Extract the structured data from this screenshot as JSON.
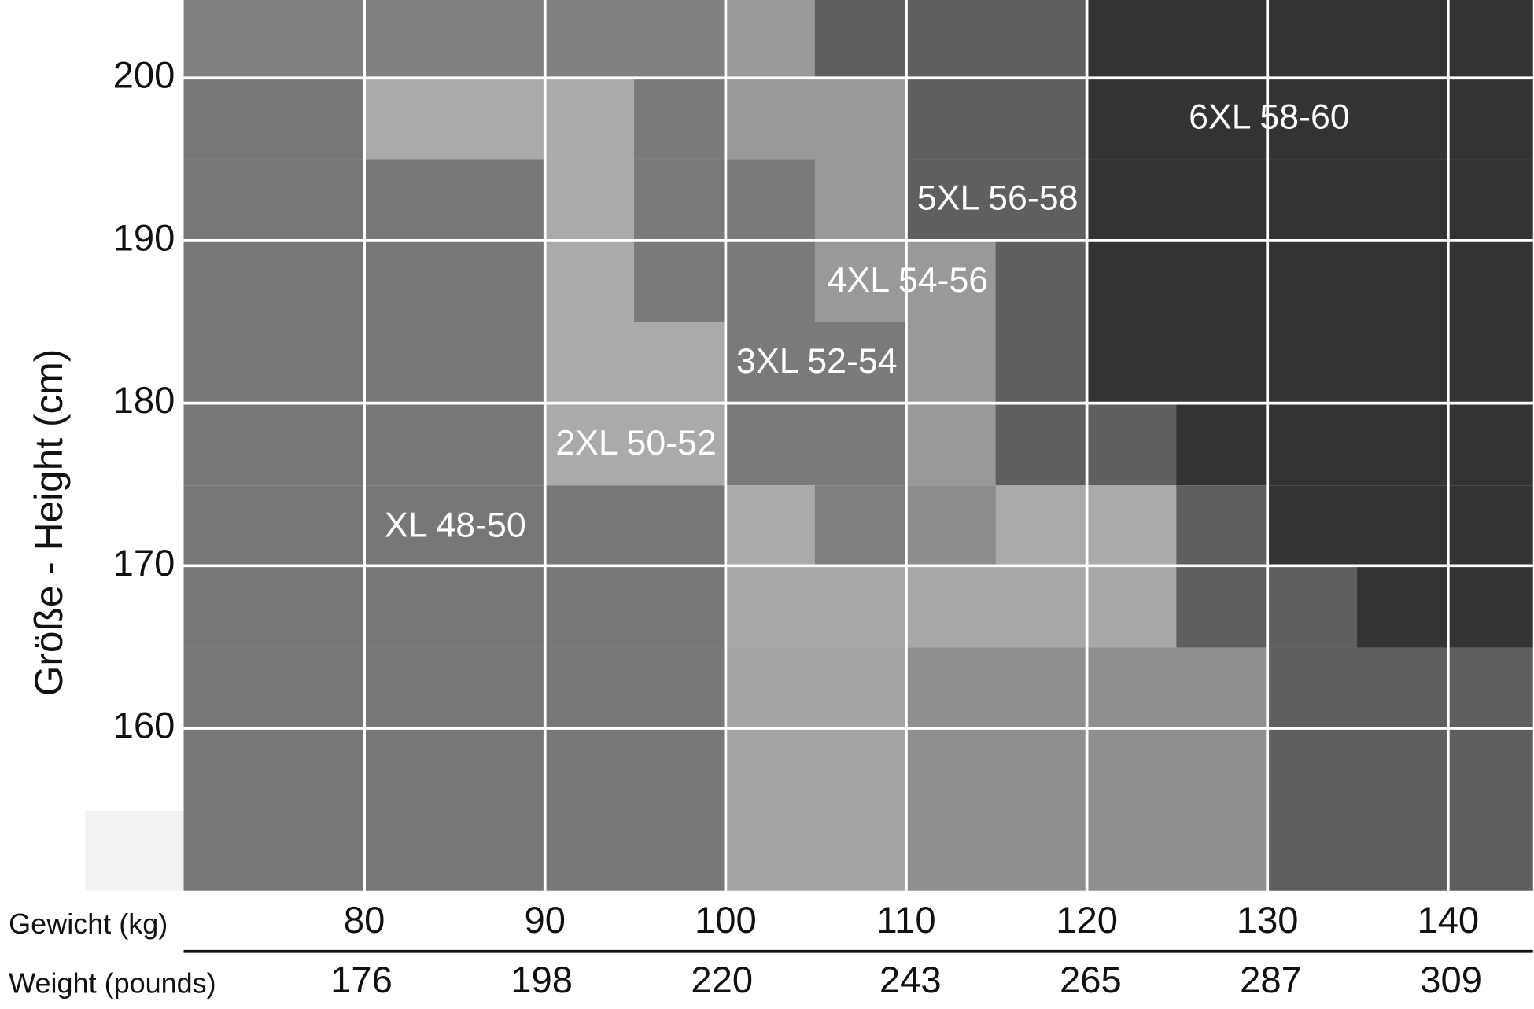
{
  "chart_data": {
    "type": "heatmap",
    "y_label": "Größe - Height (cm)",
    "x_label": "Gewicht (kg)",
    "x2_label": "Weight (pounds)",
    "xlim": [
      70,
      144.7
    ],
    "xticks": [
      80,
      90,
      100,
      110,
      120,
      130,
      140
    ],
    "x2lim": [
      154.3,
      319.0
    ],
    "x2ticks": [
      176,
      198,
      220,
      243,
      265,
      287,
      309
    ],
    "ylim": [
      150,
      204.8
    ],
    "yticks": [
      160,
      170,
      180,
      190,
      200
    ],
    "grid": true,
    "annotations": [
      "XL 48-50",
      "2XL 50-52",
      "3XL 52-54",
      "4XL 54-56",
      "5XL 56-58",
      "6XL 58-60"
    ]
  }
}
